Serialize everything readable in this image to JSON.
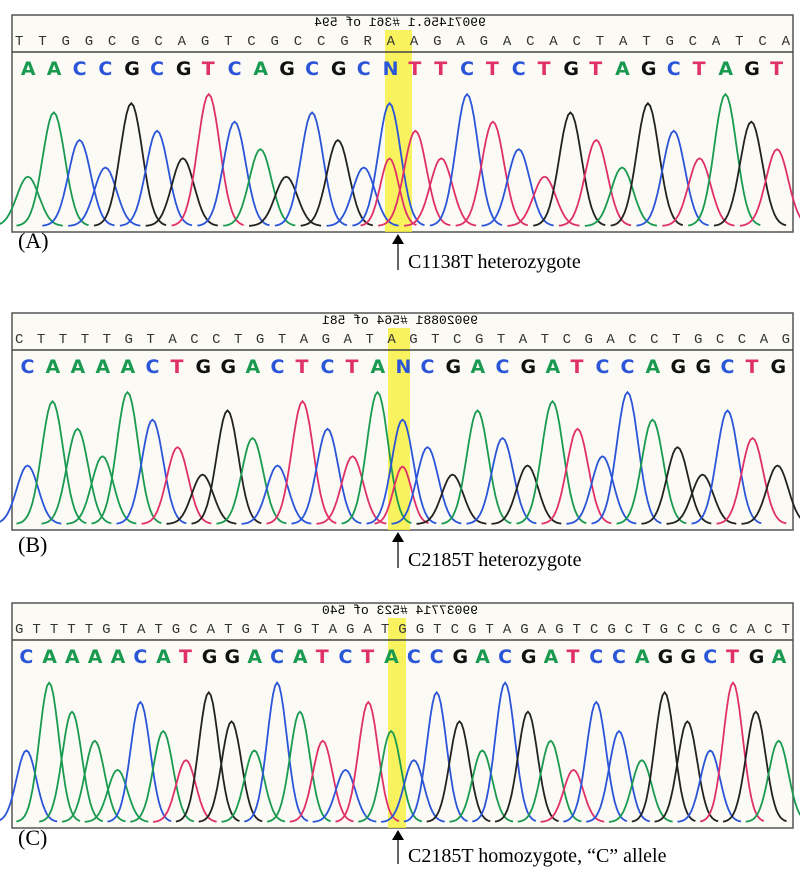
{
  "panels": [
    {
      "label": "(A)",
      "annotation": "C1138T heterozygote",
      "header": "99071456.1 #361 of 594",
      "top_sequence": "T T G G C G C A G T C G C C G R A A G A G A C A C T A T G C A T C A",
      "called_bases": [
        "A",
        "A",
        "C",
        "C",
        "G",
        "C",
        "G",
        "T",
        "C",
        "A",
        "G",
        "C",
        "G",
        "C",
        "N",
        "T",
        "T",
        "C",
        "T",
        "C",
        "T",
        "G",
        "T",
        "A",
        "G",
        "C",
        "T",
        "A",
        "G",
        "T"
      ]
    },
    {
      "label": "(B)",
      "annotation": "C2185T heterozygote",
      "header": "99020881 #564 of 581",
      "top_sequence": "C T T T T G T A C C T G T A G A T A G T C G T A T C G A C C T G C C A G",
      "called_bases": [
        "C",
        "A",
        "A",
        "A",
        "A",
        "C",
        "T",
        "G",
        "G",
        "A",
        "C",
        "T",
        "C",
        "T",
        "A",
        "N",
        "C",
        "G",
        "A",
        "C",
        "G",
        "A",
        "T",
        "C",
        "C",
        "A",
        "G",
        "G",
        "C",
        "T",
        "G"
      ]
    },
    {
      "label": "(C)",
      "annotation": "C2185T homozygote, “C” allele",
      "header": "99037714 #523 of 540",
      "top_sequence": "G T T T T G T A T G C A T G A T G T A G A T G G T C G T A G A G T C G C T G C C G C A C T",
      "called_bases": [
        "C",
        "A",
        "A",
        "A",
        "A",
        "C",
        "A",
        "T",
        "G",
        "G",
        "A",
        "C",
        "A",
        "T",
        "C",
        "T",
        "A",
        "C",
        "C",
        "G",
        "A",
        "C",
        "G",
        "A",
        "T",
        "C",
        "C",
        "A",
        "G",
        "G",
        "C",
        "T",
        "G",
        "A"
      ]
    }
  ]
}
